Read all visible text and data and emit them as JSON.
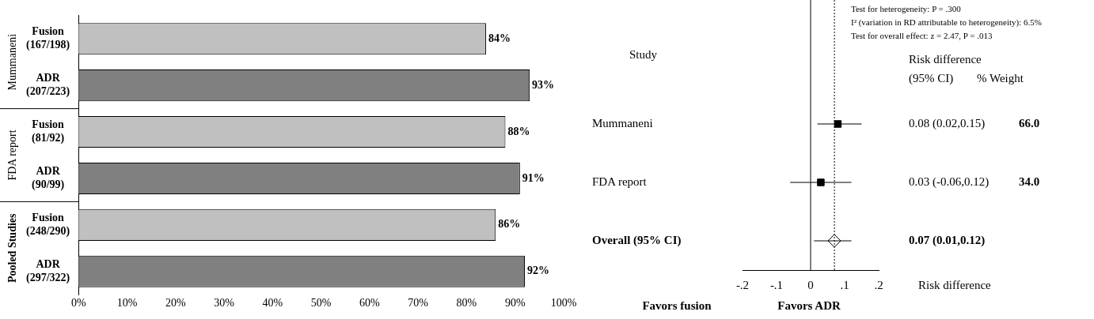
{
  "chart_data": [
    {
      "type": "bar",
      "orientation": "horizontal",
      "categories": [
        "Fusion (167/198)",
        "ADR (207/223)",
        "Fusion (81/92)",
        "ADR (90/99)",
        "Fusion (248/290)",
        "ADR (297/322)"
      ],
      "values": [
        84,
        93,
        88,
        91,
        86,
        92
      ],
      "colors": [
        "#c0c0c0",
        "#808080",
        "#c0c0c0",
        "#808080",
        "#c0c0c0",
        "#808080"
      ],
      "value_labels": [
        "84%",
        "93%",
        "88%",
        "91%",
        "86%",
        "92%"
      ],
      "xlim": [
        0,
        100
      ],
      "xticks": [
        {
          "value": 0,
          "label": "0%"
        },
        {
          "value": 10,
          "label": "10%"
        },
        {
          "value": 20,
          "label": "20%"
        },
        {
          "value": 30,
          "label": "30%"
        },
        {
          "value": 40,
          "label": "40%"
        },
        {
          "value": 50,
          "label": "50%"
        },
        {
          "value": 60,
          "label": "60%"
        },
        {
          "value": 70,
          "label": "70%"
        },
        {
          "value": 80,
          "label": "80%"
        },
        {
          "value": 90,
          "label": "90%"
        },
        {
          "value": 100,
          "label": "100%"
        }
      ],
      "annotations": [
        "Mummaneni",
        "FDA report",
        "Pooled Studies"
      ],
      "grid": false,
      "legend": false
    },
    {
      "type": "scatter",
      "orientation": "horizontal",
      "categories": [
        "Mummaneni",
        "FDA report",
        "Overall (95% CI)"
      ],
      "series": [
        {
          "color": "#000000",
          "marker": "square",
          "values": [
            0.08,
            0.03,
            null
          ],
          "errors": [
            [
              0.02,
              0.15
            ],
            [
              -0.06,
              0.12
            ],
            null
          ],
          "value_labels": [
            "0.08 (0.02,0.15)",
            "0.03 (-0.06,0.12)",
            null
          ]
        },
        {
          "color": "#000000",
          "marker": "diamond",
          "values": [
            null,
            null,
            0.07
          ],
          "errors": [
            null,
            null,
            [
              0.01,
              0.12
            ]
          ],
          "value_labels": [
            null,
            null,
            null
          ]
        }
      ],
      "xlim": [
        -0.2,
        0.2
      ],
      "xticks": [
        {
          "value": -0.2,
          "label": "-.2"
        },
        {
          "value": -0.1,
          "label": "-.1"
        },
        0,
        {
          "value": 0.1,
          "label": ".1"
        },
        {
          "value": 0.2,
          "label": ".2"
        }
      ],
      "xlabel": "Risk difference",
      "ref_lines": [
        {
          "axis": "x",
          "value": 0
        },
        {
          "axis": "x",
          "value": 0.07,
          "line_style": "dotted"
        }
      ],
      "annotations": [
        "Test for heterogeneity: P = .300",
        "I² (variation in RD attributable to heterogeneity): 6.5%",
        "Test for overall effect: z = 2.47, P = .013",
        "Study",
        "Risk difference",
        "(95% CI)",
        "% Weight",
        "66.0",
        "34.0",
        "Favors fusion",
        "Favors ADR",
        "0.07 (0.01,0.12)"
      ],
      "grid": false,
      "legend": false
    }
  ]
}
